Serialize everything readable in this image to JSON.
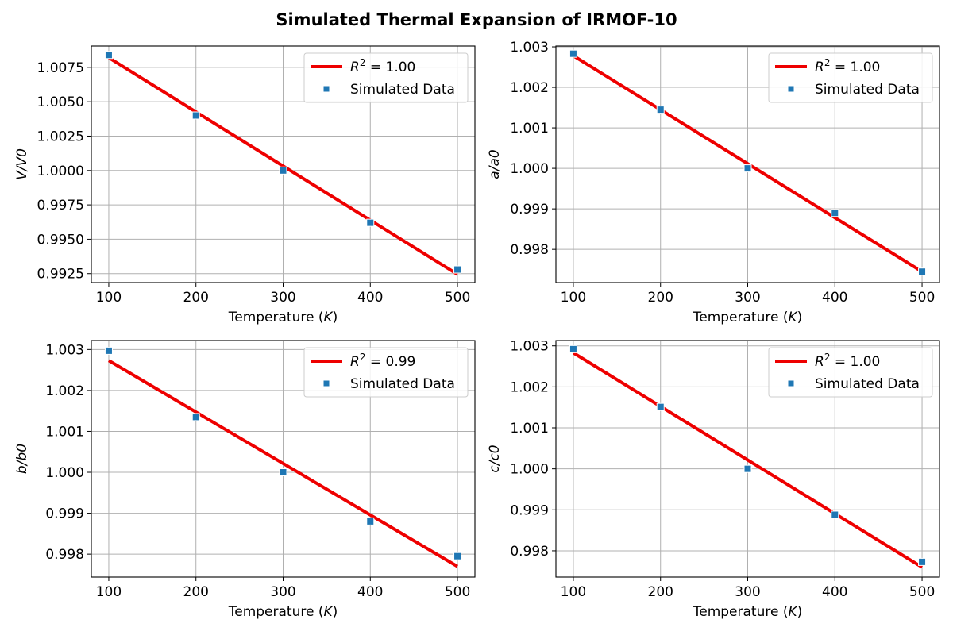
{
  "figure_title": "Simulated Thermal Expansion of IRMOF-10",
  "colors": {
    "fit_line": "#ee0000",
    "data_points": "#1f77b4",
    "grid": "#b0b0b0"
  },
  "chart_data": [
    {
      "id": "volume",
      "type": "scatter",
      "xlabel": "Temperature (K)",
      "ylabel": "V/V0",
      "xlim": [
        80,
        520
      ],
      "ylim": [
        0.99185,
        1.00905
      ],
      "xticks": [
        100,
        200,
        300,
        400,
        500
      ],
      "xtick_labels": [
        "100",
        "200",
        "300",
        "400",
        "500"
      ],
      "yticks": [
        0.9925,
        0.995,
        0.9975,
        1.0,
        1.0025,
        1.005,
        1.0075
      ],
      "ytick_labels": [
        "0.9925",
        "0.9950",
        "0.9975",
        "1.0000",
        "1.0025",
        "1.0050",
        "1.0075"
      ],
      "grid": true,
      "legend_position": "top-right",
      "series": [
        {
          "name": "R² = 1.00",
          "kind": "fit-line",
          "x": [
            100,
            500
          ],
          "y": [
            1.0082,
            0.99245
          ]
        },
        {
          "name": "Simulated Data",
          "kind": "points",
          "x": [
            100,
            200,
            300,
            400,
            500
          ],
          "y": [
            1.0084,
            1.004,
            1.0,
            0.9962,
            0.9928
          ]
        }
      ]
    },
    {
      "id": "a-axis",
      "type": "scatter",
      "xlabel": "Temperature (K)",
      "ylabel": "a/a0",
      "xlim": [
        80,
        520
      ],
      "ylim": [
        0.99718,
        1.00302
      ],
      "xticks": [
        100,
        200,
        300,
        400,
        500
      ],
      "xtick_labels": [
        "100",
        "200",
        "300",
        "400",
        "500"
      ],
      "yticks": [
        0.998,
        0.999,
        1.0,
        1.001,
        1.002,
        1.003
      ],
      "ytick_labels": [
        "0.998",
        "0.999",
        "1.000",
        "1.001",
        "1.002",
        "1.003"
      ],
      "grid": true,
      "legend_position": "top-right",
      "series": [
        {
          "name": "R² = 1.00",
          "kind": "fit-line",
          "x": [
            100,
            500
          ],
          "y": [
            1.00278,
            0.99745
          ]
        },
        {
          "name": "Simulated Data",
          "kind": "points",
          "x": [
            100,
            200,
            300,
            400,
            500
          ],
          "y": [
            1.00283,
            1.00145,
            1.0,
            0.9989,
            0.99745
          ]
        }
      ]
    },
    {
      "id": "b-axis",
      "type": "scatter",
      "xlabel": "Temperature (K)",
      "ylabel": "b/b0",
      "xlim": [
        80,
        520
      ],
      "ylim": [
        0.99744,
        1.00322
      ],
      "xticks": [
        100,
        200,
        300,
        400,
        500
      ],
      "xtick_labels": [
        "100",
        "200",
        "300",
        "400",
        "500"
      ],
      "yticks": [
        0.998,
        0.999,
        1.0,
        1.001,
        1.002,
        1.003
      ],
      "ytick_labels": [
        "0.998",
        "0.999",
        "1.000",
        "1.001",
        "1.002",
        "1.003"
      ],
      "grid": true,
      "legend_position": "top-right",
      "series": [
        {
          "name": "R² = 0.99",
          "kind": "fit-line",
          "x": [
            100,
            500
          ],
          "y": [
            1.00273,
            0.9977
          ]
        },
        {
          "name": "Simulated Data",
          "kind": "points",
          "x": [
            100,
            200,
            300,
            400,
            500
          ],
          "y": [
            1.00297,
            1.00135,
            1.0,
            0.9988,
            0.99795
          ]
        }
      ]
    },
    {
      "id": "c-axis",
      "type": "scatter",
      "xlabel": "Temperature (K)",
      "ylabel": "c/c0",
      "xlim": [
        80,
        520
      ],
      "ylim": [
        0.99736,
        1.00313
      ],
      "xticks": [
        100,
        200,
        300,
        400,
        500
      ],
      "xtick_labels": [
        "100",
        "200",
        "300",
        "400",
        "500"
      ],
      "yticks": [
        0.998,
        0.999,
        1.0,
        1.001,
        1.002,
        1.003
      ],
      "ytick_labels": [
        "0.998",
        "0.999",
        "1.000",
        "1.001",
        "1.002",
        "1.003"
      ],
      "grid": true,
      "legend_position": "top-right",
      "series": [
        {
          "name": "R² = 1.00",
          "kind": "fit-line",
          "x": [
            100,
            500
          ],
          "y": [
            1.00283,
            0.9976
          ]
        },
        {
          "name": "Simulated Data",
          "kind": "points",
          "x": [
            100,
            200,
            300,
            400,
            500
          ],
          "y": [
            1.00292,
            1.00151,
            1.0,
            0.99888,
            0.99773
          ]
        }
      ]
    }
  ]
}
